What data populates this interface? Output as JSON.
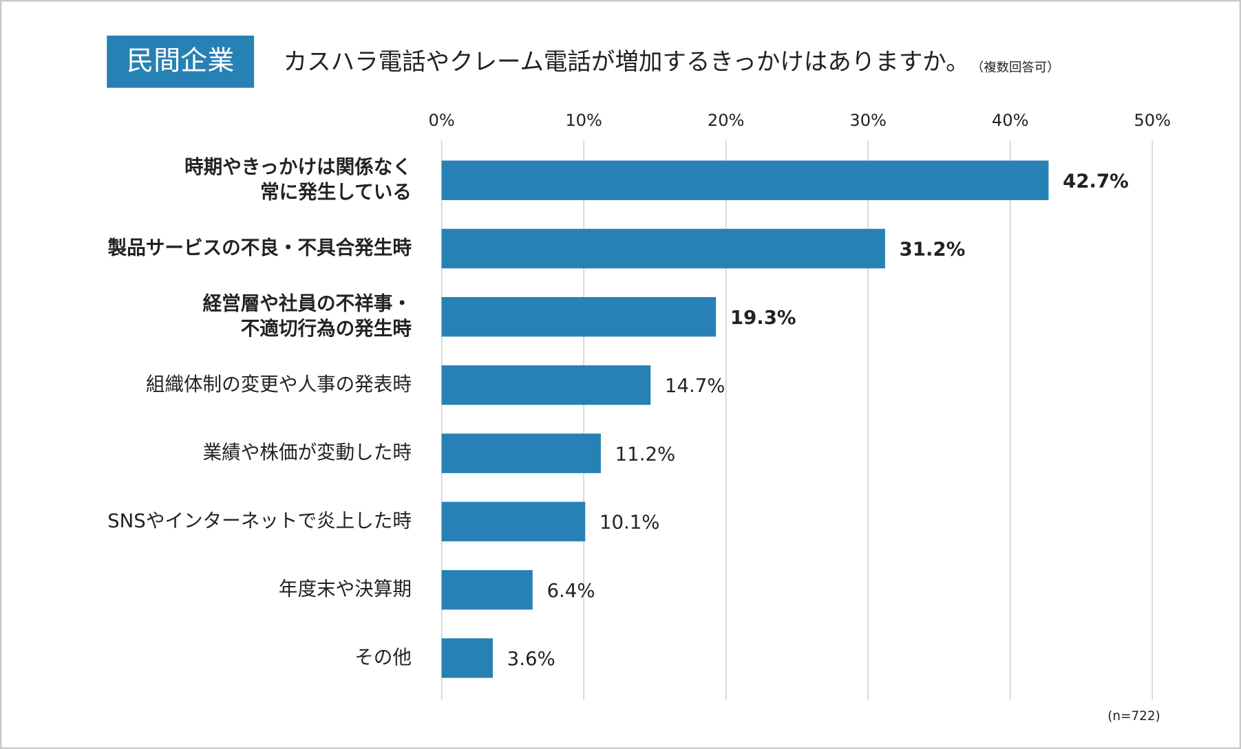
{
  "badge": "民間企業",
  "chart_data": {
    "type": "bar",
    "orientation": "horizontal",
    "title": "カスハラ電話やクレーム電話が増加するきっかけはありますか。",
    "subtitle": "（複数回答可）",
    "note": "(n=722)",
    "categories": [
      [
        "時期やきっかけは関係なく",
        "常に発生している"
      ],
      [
        "製品サービスの不良・不具合発生時"
      ],
      [
        "経営層や社員の不祥事・",
        "不適切行為の発生時"
      ],
      [
        "組織体制の変更や人事の発表時"
      ],
      [
        "業績や株価が変動した時"
      ],
      [
        "SNSやインターネットで炎上した時"
      ],
      [
        "年度末や決算期"
      ],
      [
        "その他"
      ]
    ],
    "bold": [
      true,
      true,
      true,
      false,
      false,
      false,
      false,
      false
    ],
    "values": [
      42.7,
      31.2,
      19.3,
      14.7,
      11.2,
      10.1,
      6.4,
      3.6
    ],
    "value_labels": [
      "42.7%",
      "31.2%",
      "19.3%",
      "14.7%",
      "11.2%",
      "10.1%",
      "6.4%",
      "3.6%"
    ],
    "color": "#2781b4",
    "xlim": [
      0,
      50
    ],
    "xticks": [
      {
        "value": 0,
        "label": "0%"
      },
      {
        "value": 10,
        "label": "10%"
      },
      {
        "value": 20,
        "label": "20%"
      },
      {
        "value": 30,
        "label": "30%"
      },
      {
        "value": 40,
        "label": "40%"
      },
      {
        "value": 50,
        "label": "50%"
      }
    ],
    "grid": true
  }
}
